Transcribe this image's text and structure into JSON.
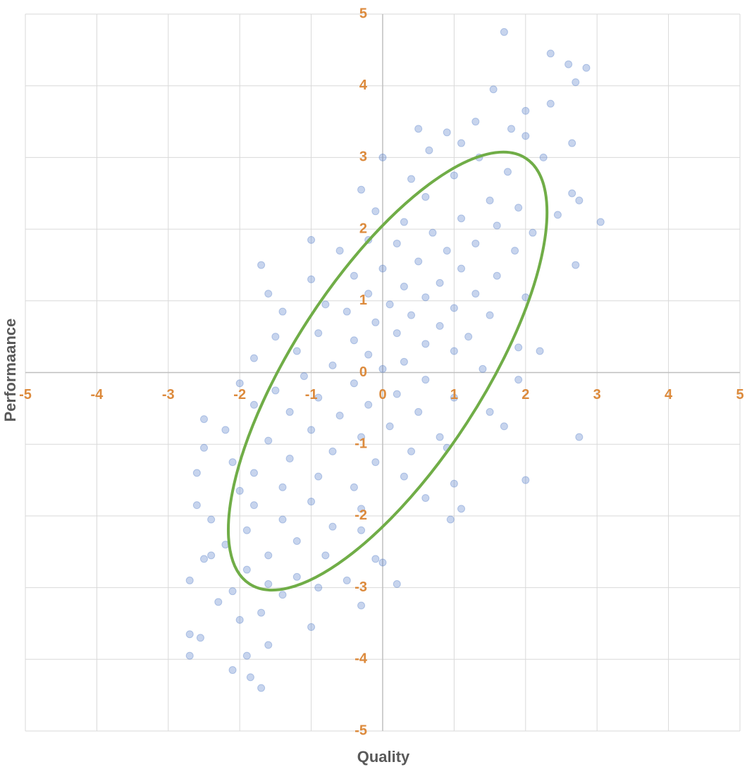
{
  "chart_data": {
    "type": "scatter",
    "x_label": "Quality",
    "y_label": "Performaance",
    "xlim": [
      -5,
      5
    ],
    "ylim": [
      -5,
      5
    ],
    "xticks": [
      -5,
      -4,
      -3,
      -2,
      -1,
      0,
      1,
      2,
      3,
      4,
      5
    ],
    "yticks": [
      -5,
      -4,
      -3,
      -2,
      -1,
      0,
      1,
      2,
      3,
      4,
      5
    ],
    "grid": true,
    "color": "#4472c4",
    "x": [
      1.7,
      2.35,
      2.6,
      2.85,
      2.7,
      1.55,
      2.35,
      2.0,
      1.3,
      0.5,
      0.9,
      1.8,
      2.65,
      2.0,
      1.1,
      0.65,
      0,
      1.35,
      2.25,
      1.75,
      1.0,
      0.4,
      -0.3,
      2.65,
      2.75,
      0.6,
      1.5,
      1.9,
      2.45,
      3.05,
      -0.1,
      0.3,
      1.1,
      1.6,
      2.1,
      0.7,
      -0.2,
      0.2,
      1.3,
      0.9,
      1.85,
      -1.0,
      -0.6,
      2.7,
      -1.7,
      0.5,
      1.1,
      0.0,
      -0.4,
      1.6,
      0.8,
      -1.0,
      0.3,
      -0.2,
      1.3,
      -1.6,
      0.6,
      2.0,
      -1.4,
      -0.8,
      0.1,
      1.0,
      -0.5,
      0.4,
      1.5,
      -0.1,
      0.8,
      -1.5,
      -0.9,
      0.2,
      1.2,
      1.9,
      -0.4,
      0.6,
      2.2,
      -1.2,
      -0.2,
      1.0,
      -1.8,
      0.3,
      -0.7,
      1.4,
      0.0,
      -1.1,
      0.6,
      -2.0,
      -0.4,
      1.9,
      -1.5,
      0.2,
      -0.9,
      1.0,
      -0.2,
      -1.8,
      0.5,
      -1.3,
      1.5,
      -0.6,
      -2.5,
      1.7,
      0.1,
      -1.0,
      -2.2,
      -0.3,
      0.8,
      -1.6,
      2.75,
      -2.5,
      -0.7,
      0.4,
      -1.3,
      -2.1,
      0.9,
      -0.1,
      -1.8,
      -0.9,
      0.3,
      1.0,
      2.0,
      -2.6,
      -1.4,
      -0.4,
      -2.0,
      0.6,
      -1.0,
      -1.8,
      -2.6,
      -0.3,
      1.1,
      -1.4,
      -2.4,
      -0.7,
      0.95,
      -1.9,
      -0.3,
      -1.2,
      -2.2,
      -2.4,
      -1.6,
      -0.8,
      -0.1,
      -2.5,
      -1.9,
      -1.2,
      0.0,
      0.2,
      -0.5,
      -1.6,
      -2.7,
      -2.1,
      -0.9,
      -1.4,
      -2.3,
      -1.7,
      -0.3,
      -1.0,
      -2.0,
      -2.7,
      -2.55,
      -1.6,
      -1.9,
      -2.7,
      -2.1,
      -1.85,
      -1.7
    ],
    "values": [
      4.75,
      4.45,
      4.3,
      4.25,
      4.05,
      3.95,
      3.75,
      3.65,
      3.5,
      3.4,
      3.35,
      3.4,
      3.2,
      3.3,
      3.2,
      3.1,
      3.0,
      3.0,
      3.0,
      2.8,
      2.75,
      2.7,
      2.55,
      2.5,
      2.4,
      2.45,
      2.4,
      2.3,
      2.2,
      2.1,
      2.25,
      2.1,
      2.15,
      2.05,
      1.95,
      1.95,
      1.85,
      1.8,
      1.8,
      1.7,
      1.7,
      1.85,
      1.7,
      1.5,
      1.5,
      1.55,
      1.45,
      1.45,
      1.35,
      1.35,
      1.25,
      1.3,
      1.2,
      1.1,
      1.1,
      1.1,
      1.05,
      1.05,
      0.85,
      0.95,
      0.95,
      0.9,
      0.85,
      0.8,
      0.8,
      0.7,
      0.65,
      0.5,
      0.55,
      0.55,
      0.5,
      0.35,
      0.45,
      0.4,
      0.3,
      0.3,
      0.25,
      0.3,
      0.2,
      0.15,
      0.1,
      0.05,
      0.05,
      -0.05,
      -0.1,
      -0.15,
      -0.15,
      -0.1,
      -0.25,
      -0.3,
      -0.35,
      -0.35,
      -0.45,
      -0.45,
      -0.55,
      -0.55,
      -0.55,
      -0.6,
      -0.65,
      -0.75,
      -0.75,
      -0.8,
      -0.8,
      -0.9,
      -0.9,
      -0.95,
      -0.9,
      -1.05,
      -1.1,
      -1.1,
      -1.2,
      -1.25,
      -1.05,
      -1.25,
      -1.4,
      -1.45,
      -1.45,
      -1.55,
      -1.5,
      -1.4,
      -1.6,
      -1.6,
      -1.65,
      -1.75,
      -1.8,
      -1.85,
      -1.85,
      -1.9,
      -1.9,
      -2.05,
      -2.05,
      -2.15,
      -2.05,
      -2.2,
      -2.2,
      -2.35,
      -2.4,
      -2.55,
      -2.55,
      -2.55,
      -2.6,
      -2.6,
      -2.75,
      -2.85,
      -2.65,
      -2.95,
      -2.9,
      -2.95,
      -2.9,
      -3.05,
      -3.0,
      -3.1,
      -3.2,
      -3.35,
      -3.25,
      -3.55,
      -3.45,
      -3.65,
      -3.7,
      -3.8,
      -3.95,
      -3.95,
      -4.15,
      -4.25,
      -4.4
    ],
    "ellipse": {
      "color": "#70ad47",
      "cx": 0.07,
      "cy": 0.02,
      "rx": 3.55,
      "ry": 1.32,
      "angle": 57
    }
  }
}
